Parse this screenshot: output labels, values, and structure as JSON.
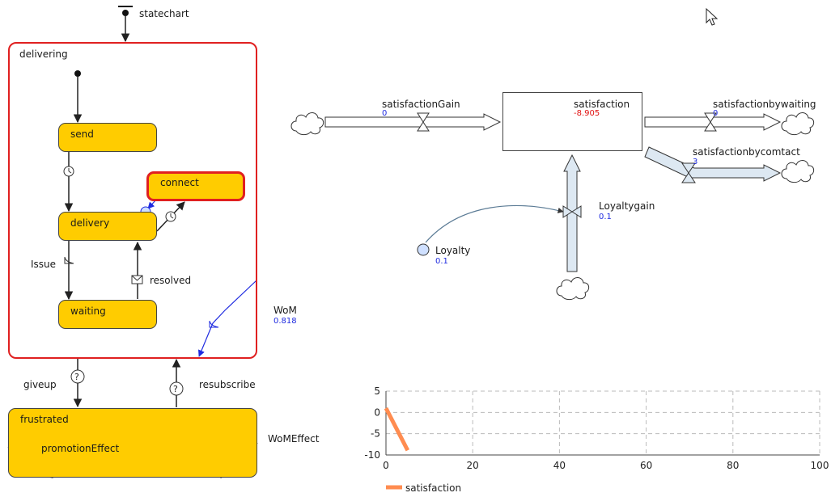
{
  "statechart": {
    "entry_label": "statechart",
    "superstate": "delivering",
    "states": {
      "send": "send",
      "delivery": "delivery",
      "connect": "connect",
      "waiting": "waiting",
      "frustrated": "frustrated"
    },
    "transitions": {
      "issue": "Issue",
      "resolved": "resolved",
      "giveup": "giveup",
      "resubscribe": "resubscribe",
      "promotion_effect": "promotionEffect",
      "wom_effect": "WoMEffect"
    }
  },
  "stock_flow": {
    "wom": {
      "name": "WoM",
      "value": "0.818"
    },
    "satisfaction_gain": {
      "name": "satisfactionGain",
      "value": "0"
    },
    "satisfaction": {
      "name": "satisfaction",
      "value": "-8.905"
    },
    "satisfaction_by_waiting": {
      "name": "satisfactionbywaiting",
      "value": "0"
    },
    "satisfaction_by_contact": {
      "name": "satisfactionbycomtact",
      "value": "3"
    },
    "loyalty_gain": {
      "name": "Loyaltygain",
      "value": "0.1"
    },
    "loyalty": {
      "name": "Loyalty",
      "value": "0.1"
    }
  },
  "chart_data": {
    "type": "line",
    "title": "",
    "xlabel": "",
    "ylabel": "",
    "xlim": [
      0,
      100
    ],
    "ylim": [
      -10,
      5
    ],
    "x_ticks": [
      "0",
      "20",
      "40",
      "60",
      "80",
      "100"
    ],
    "y_ticks": [
      "5",
      "0",
      "-5",
      "-10"
    ],
    "grid": true,
    "legend_position": "bottom-left",
    "series": [
      {
        "name": "satisfaction",
        "color": "#ff8c50",
        "x": [
          0,
          5
        ],
        "y": [
          1,
          -8.9
        ]
      }
    ]
  },
  "colors": {
    "state_fill": "#ffcc00",
    "active_border": "#e02020",
    "value_blue": "#1f2be0",
    "value_red": "#e01010",
    "series_orange": "#ff8c50"
  }
}
